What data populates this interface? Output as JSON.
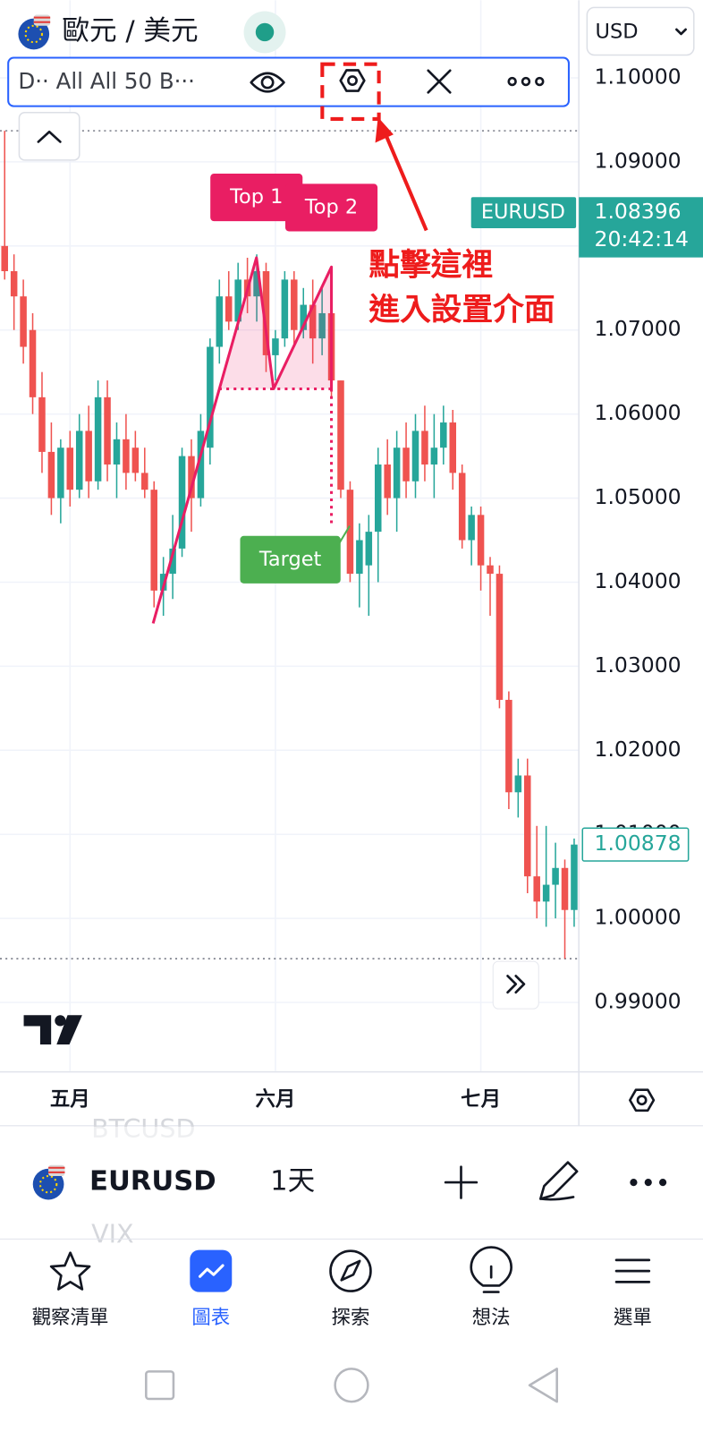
{
  "header": {
    "title": "歐元 / 美元",
    "currency": "USD"
  },
  "indicator_bar": {
    "label": "D·· All All 50 B···"
  },
  "callout": [
    "點擊這裡",
    "進入設置介面"
  ],
  "chart_data": {
    "type": "candlestick",
    "open": [
      1.08,
      1.077,
      1.074,
      1.07,
      1.062,
      1.0555,
      1.05,
      1.056,
      1.051,
      1.058,
      1.052,
      1.062,
      1.054,
      1.057,
      1.056,
      1.053,
      1.051,
      1.039,
      1.041,
      1.044,
      1.055,
      1.05,
      1.056,
      1.068,
      1.074,
      1.071,
      1.076,
      1.074,
      1.077,
      1.067,
      1.069,
      1.076,
      1.07,
      1.073,
      1.069,
      1.072,
      1.064,
      1.051,
      1.041,
      1.042,
      1.046,
      1.054,
      1.05,
      1.056,
      1.052,
      1.058,
      1.054,
      1.056,
      1.059,
      1.053,
      1.045,
      1.048,
      1.042,
      1.041,
      1.026,
      1.015,
      1.017,
      1.005,
      1.002,
      1.004,
      1.006,
      1.001
    ],
    "high": [
      1.0937,
      1.079,
      1.076,
      1.072,
      1.065,
      1.059,
      1.057,
      1.058,
      1.06,
      1.061,
      1.064,
      1.064,
      1.059,
      1.06,
      1.058,
      1.056,
      1.052,
      1.043,
      1.048,
      1.056,
      1.057,
      1.06,
      1.069,
      1.076,
      1.077,
      1.078,
      1.0786,
      1.079,
      1.078,
      1.07,
      1.077,
      1.077,
      1.075,
      1.076,
      1.075,
      1.0775,
      1.064,
      1.052,
      1.047,
      1.048,
      1.056,
      1.057,
      1.058,
      1.059,
      1.06,
      1.061,
      1.06,
      1.061,
      1.0605,
      1.054,
      1.049,
      1.049,
      1.043,
      1.042,
      1.027,
      1.019,
      1.019,
      1.011,
      1.011,
      1.009,
      1.007,
      1.0095
    ],
    "low": [
      1.076,
      1.07,
      1.066,
      1.06,
      1.053,
      1.048,
      1.047,
      1.049,
      1.05,
      1.05,
      1.051,
      1.052,
      1.05,
      1.051,
      1.052,
      1.05,
      1.037,
      1.036,
      1.038,
      1.043,
      1.046,
      1.049,
      1.054,
      1.066,
      1.07,
      1.07,
      1.072,
      1.071,
      1.065,
      1.064,
      1.068,
      1.068,
      1.069,
      1.066,
      1.067,
      1.062,
      1.05,
      1.04,
      1.037,
      1.036,
      1.04,
      1.048,
      1.046,
      1.05,
      1.05,
      1.052,
      1.05,
      1.054,
      1.051,
      1.044,
      1.042,
      1.039,
      1.036,
      1.025,
      1.013,
      1.012,
      1.003,
      1.0,
      0.999,
      1.0,
      0.9952,
      0.999
    ],
    "close": [
      1.077,
      1.074,
      1.068,
      1.062,
      1.0555,
      1.05,
      1.056,
      1.051,
      1.058,
      1.052,
      1.062,
      1.054,
      1.057,
      1.053,
      1.053,
      1.051,
      1.039,
      1.041,
      1.044,
      1.055,
      1.05,
      1.058,
      1.068,
      1.074,
      1.071,
      1.076,
      1.074,
      1.077,
      1.067,
      1.069,
      1.076,
      1.07,
      1.073,
      1.069,
      1.072,
      1.064,
      1.051,
      1.041,
      1.045,
      1.046,
      1.054,
      1.05,
      1.056,
      1.052,
      1.058,
      1.054,
      1.056,
      1.059,
      1.053,
      1.045,
      1.048,
      1.042,
      1.041,
      1.026,
      1.015,
      1.017,
      1.005,
      1.002,
      1.004,
      1.006,
      1.001,
      1.00878
    ],
    "up_color": "#26a69a",
    "down_color": "#ef5350",
    "xlim": [
      -0.5,
      61.5
    ],
    "xticks": [
      {
        "value": 7,
        "label": "五月"
      },
      {
        "value": 29,
        "label": "六月"
      },
      {
        "value": 51,
        "label": "七月"
      }
    ],
    "ylim": [
      0.98185,
      1.10924
    ],
    "yticks": [
      {
        "value": 1.1,
        "label": "1.10000"
      },
      {
        "value": 1.09,
        "label": "1.09000"
      },
      {
        "value": 1.08,
        "label": "1.08000"
      },
      {
        "value": 1.07,
        "label": "1.07000"
      },
      {
        "value": 1.06,
        "label": "1.06000"
      },
      {
        "value": 1.05,
        "label": "1.05000"
      },
      {
        "value": 1.04,
        "label": "1.04000"
      },
      {
        "value": 1.03,
        "label": "1.03000"
      },
      {
        "value": 1.02,
        "label": "1.02000"
      },
      {
        "value": 1.01,
        "label": "1.01000"
      },
      {
        "value": 1.0,
        "label": "1.00000"
      },
      {
        "value": 0.99,
        "label": "0.99000"
      }
    ],
    "grid": true,
    "quote": {
      "symbol": "EURUSD",
      "price": 1.08396,
      "time": "20:42:14",
      "color": "#26a69a"
    },
    "pattern": {
      "color": "#e91e63",
      "target_color": "#4caf50",
      "points_x": [
        15.9,
        26.97,
        28.8,
        35.0,
        35.0
      ],
      "points_y": [
        1.0351,
        1.0786,
        1.063,
        1.0775,
        1.063
      ],
      "neckline": 1.063,
      "neckline_start": 22.96,
      "target": 1.0467,
      "top1": "Top 1",
      "top2": "Top 2",
      "target_label": "Target"
    }
  },
  "symbol_bar": {
    "previous": "BTCUSD",
    "symbol": "EURUSD",
    "interval": "1天",
    "next": "VIX"
  },
  "nav": [
    "觀察清單",
    "圖表",
    "探索",
    "想法",
    "選單"
  ]
}
